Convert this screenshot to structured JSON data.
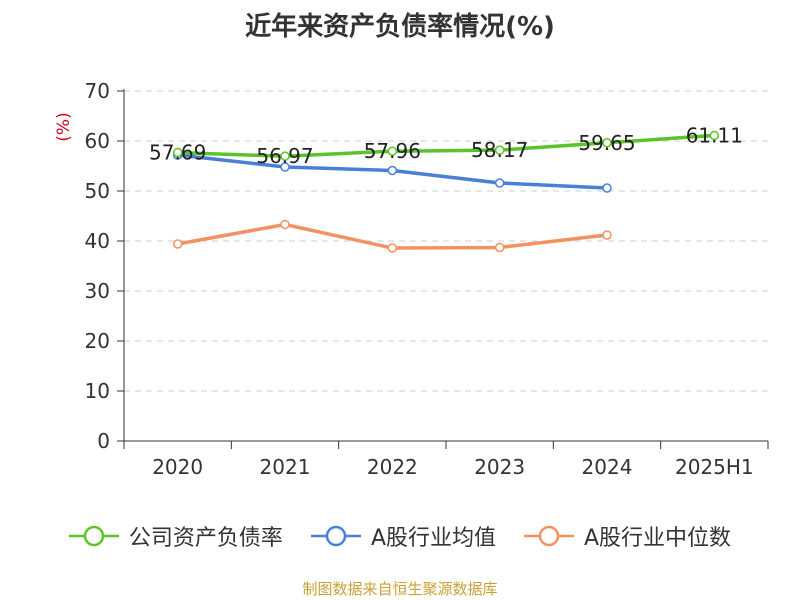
{
  "title": "近年来资产负债率情况(%)",
  "source_note": "制图数据来自恒生聚源数据库",
  "chart_data": {
    "type": "line",
    "title": "近年来资产负债率情况(%)",
    "ylabel": "(%)",
    "ylim": [
      0,
      70
    ],
    "yticks": [
      0,
      10,
      20,
      30,
      40,
      50,
      60,
      70
    ],
    "grid": true,
    "legend_position": "bottom",
    "categories": [
      "2020",
      "2021",
      "2022",
      "2023",
      "2024",
      "2025H1"
    ],
    "series": [
      {
        "name": "公司资产负债率",
        "color": "#5bc428",
        "values": [
          57.69,
          56.97,
          57.96,
          58.17,
          59.65,
          61.11
        ],
        "labels": [
          "57.69",
          "56.97",
          "57.96",
          "58.17",
          "59.65",
          "61.11"
        ]
      },
      {
        "name": "A股行业均值",
        "color": "#4a7fd8",
        "values": [
          57.2,
          54.8,
          54.1,
          51.6,
          50.6,
          null
        ]
      },
      {
        "name": "A股行业中位数",
        "color": "#f39160",
        "values": [
          39.4,
          43.3,
          38.6,
          38.7,
          41.2,
          null
        ]
      }
    ]
  }
}
